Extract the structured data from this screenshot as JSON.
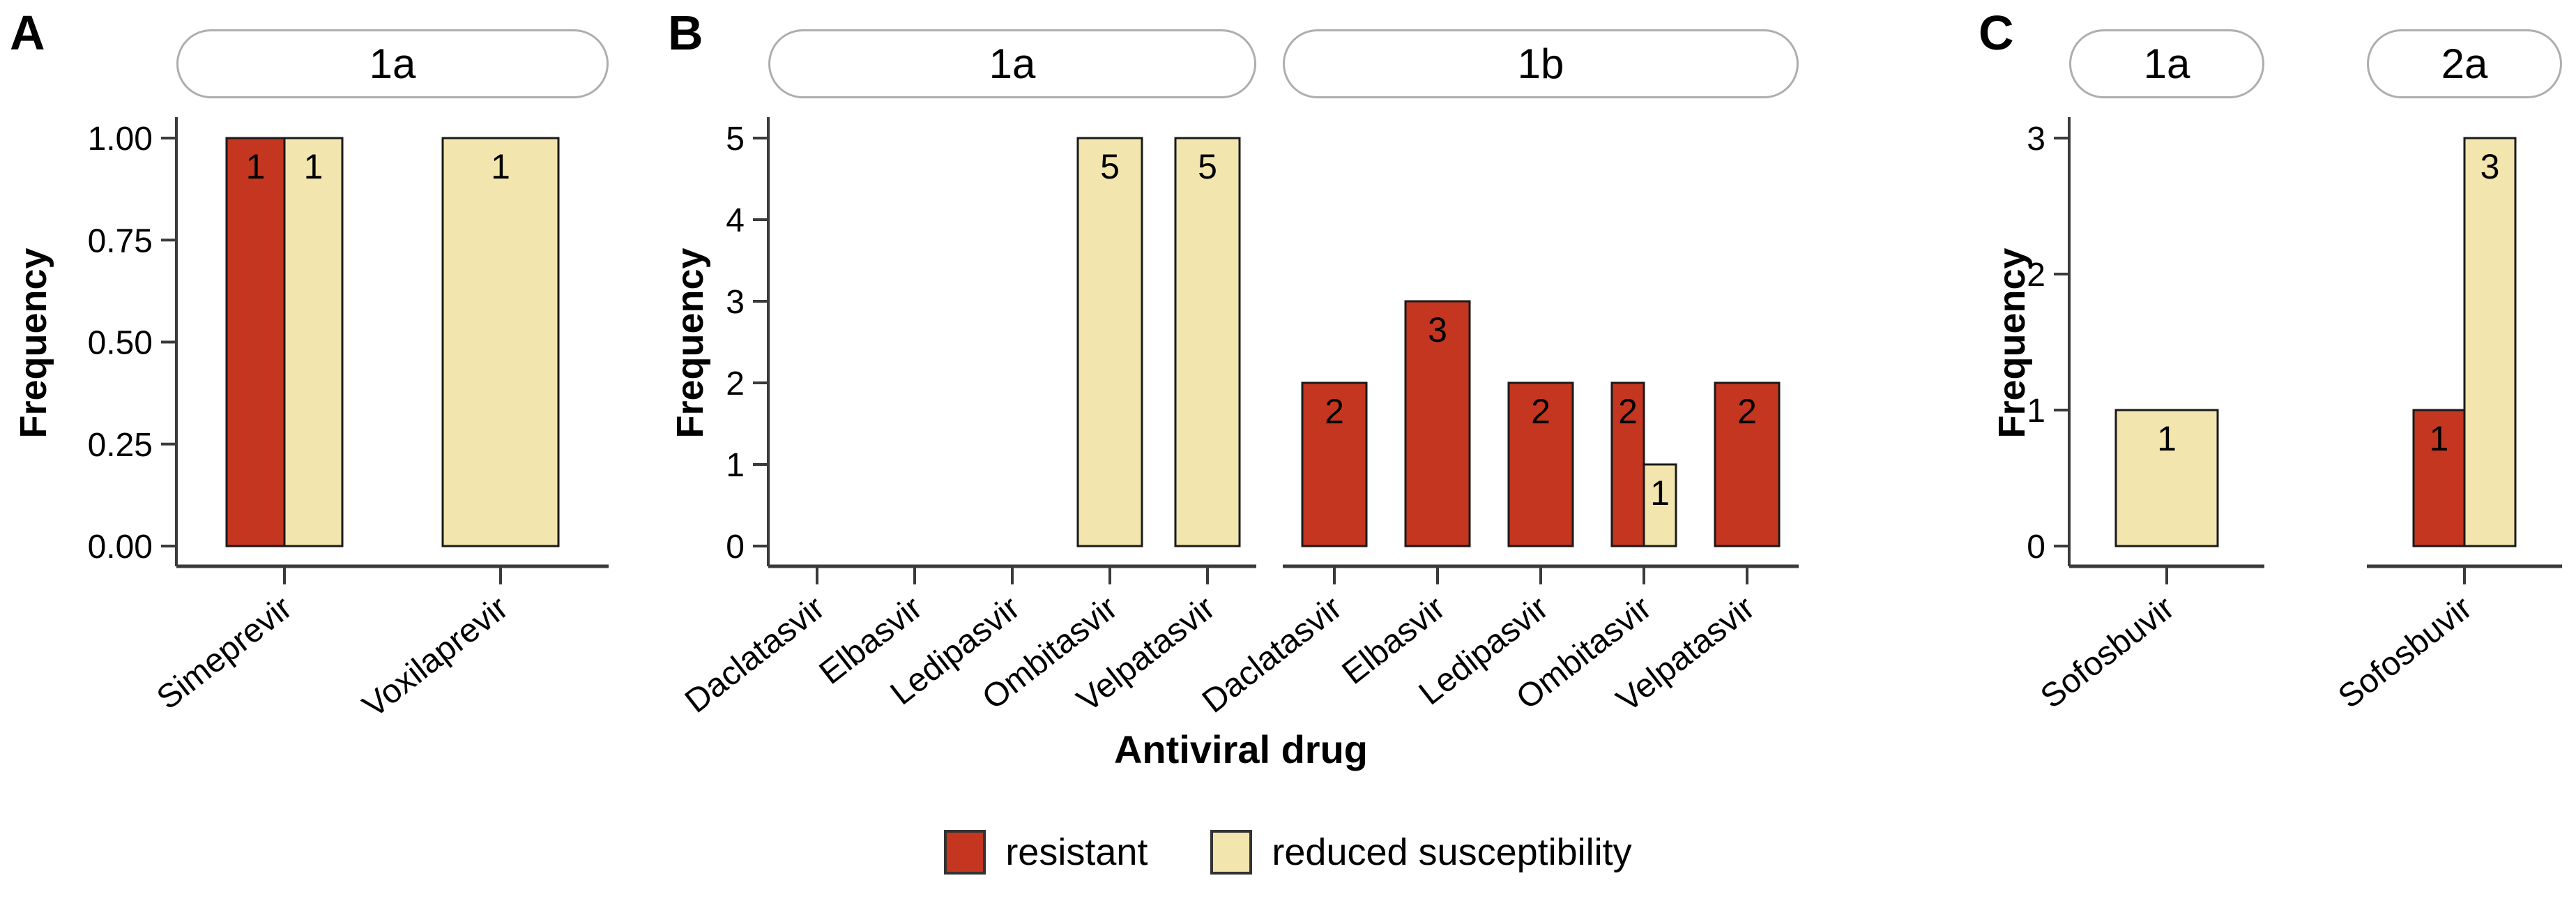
{
  "figure": {
    "ylabel": "Frequency",
    "xlabel": "Antiviral drug",
    "background": "#ffffff",
    "axis_color": "#3a3a3a",
    "bar_border_color": "#1a1a1a",
    "legend": {
      "position": "bottom-center",
      "items": [
        {
          "label": "resistant",
          "color": "#C4361F"
        },
        {
          "label": "reduced susceptibility",
          "color": "#F2E6AE"
        }
      ]
    }
  },
  "chart_data": [
    {
      "panel": "A",
      "type": "bar",
      "ylabel": "Frequency",
      "xlabel": "",
      "ylim": [
        0,
        1
      ],
      "yticks": [
        "1.00",
        "0.75",
        "0.50",
        "0.25",
        "0.00"
      ],
      "grid": false,
      "facets": [
        {
          "label": "1a",
          "categories": [
            "Simeprevir",
            "Voxilaprevir"
          ],
          "series": [
            {
              "name": "resistant",
              "values": [
                1,
                null
              ]
            },
            {
              "name": "reduced susceptibility",
              "values": [
                1,
                1
              ]
            }
          ]
        }
      ]
    },
    {
      "panel": "B",
      "type": "bar",
      "ylabel": "Frequency",
      "xlabel": "Antiviral drug",
      "ylim": [
        0,
        5
      ],
      "yticks": [
        "5",
        "4",
        "3",
        "2",
        "1",
        "0"
      ],
      "grid": false,
      "facets": [
        {
          "label": "1a",
          "categories": [
            "Daclatasvir",
            "Elbasvir",
            "Ledipasvir",
            "Ombitasvir",
            "Velpatasvir"
          ],
          "series": [
            {
              "name": "resistant",
              "values": [
                null,
                null,
                null,
                null,
                null
              ]
            },
            {
              "name": "reduced susceptibility",
              "values": [
                null,
                null,
                null,
                5,
                5
              ]
            }
          ]
        },
        {
          "label": "1b",
          "categories": [
            "Daclatasvir",
            "Elbasvir",
            "Ledipasvir",
            "Ombitasvir",
            "Velpatasvir"
          ],
          "series": [
            {
              "name": "resistant",
              "values": [
                2,
                3,
                2,
                2,
                2
              ]
            },
            {
              "name": "reduced susceptibility",
              "values": [
                null,
                null,
                null,
                1,
                null
              ]
            }
          ]
        }
      ]
    },
    {
      "panel": "C",
      "type": "bar",
      "ylabel": "Frequency",
      "xlabel": "",
      "ylim": [
        0,
        3
      ],
      "yticks": [
        "3",
        "2",
        "1",
        "0"
      ],
      "grid": false,
      "facets": [
        {
          "label": "1a",
          "categories": [
            "Sofosbuvir"
          ],
          "series": [
            {
              "name": "resistant",
              "values": [
                null
              ]
            },
            {
              "name": "reduced susceptibility",
              "values": [
                1
              ]
            }
          ]
        },
        {
          "label": "2a",
          "categories": [
            "Sofosbuvir"
          ],
          "series": [
            {
              "name": "resistant",
              "values": [
                1
              ]
            },
            {
              "name": "reduced susceptibility",
              "values": [
                3
              ]
            }
          ]
        }
      ]
    }
  ]
}
